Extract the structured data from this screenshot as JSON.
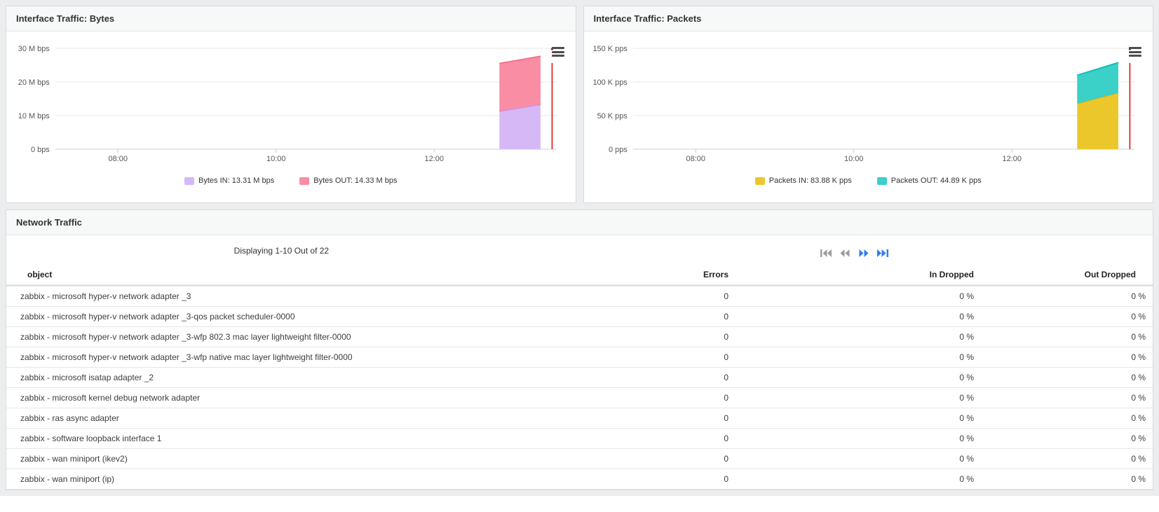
{
  "chart_data": [
    {
      "type": "area",
      "title": "Interface Traffic: Bytes",
      "stacked": true,
      "unit": "M bps",
      "ylim": [
        0,
        30
      ],
      "grid": true,
      "legend_position": "bottom",
      "y_ticks": [
        {
          "label": "30 M bps",
          "value": 30
        },
        {
          "label": "20 M bps",
          "value": 20
        },
        {
          "label": "10 M bps",
          "value": 10
        },
        {
          "label": "0 bps",
          "value": 0
        }
      ],
      "x_ticks": [
        {
          "label": "08:00",
          "pos": 0.125
        },
        {
          "label": "10:00",
          "pos": 0.44
        },
        {
          "label": "12:00",
          "pos": 0.755
        }
      ],
      "segment": {
        "x_start_frac": 0.885,
        "x_end_frac": 0.967,
        "note": "only latest ~30 min of data drawn"
      },
      "series": [
        {
          "name": "Bytes IN",
          "current": "13.31 M bps",
          "legend_label": "Bytes IN: 13.31 M bps",
          "values": [
            11.3,
            13.31
          ],
          "fill": "#d6b8f6",
          "stroke": "#bb90ef"
        },
        {
          "name": "Bytes OUT",
          "current": "14.33 M bps",
          "legend_label": "Bytes OUT: 14.33 M bps",
          "values": [
            14.2,
            14.33
          ],
          "fill": "#f98da4",
          "stroke": "#f7708f"
        }
      ],
      "time_marker": {
        "pos_frac": 0.99,
        "color": "#e60000"
      }
    },
    {
      "type": "area",
      "title": "Interface Traffic: Packets",
      "stacked": true,
      "unit": "K pps",
      "ylim": [
        0,
        150
      ],
      "grid": true,
      "legend_position": "bottom",
      "y_ticks": [
        {
          "label": "150 K pps",
          "value": 150
        },
        {
          "label": "100 K pps",
          "value": 100
        },
        {
          "label": "50 K pps",
          "value": 50
        },
        {
          "label": "0 pps",
          "value": 0
        }
      ],
      "x_ticks": [
        {
          "label": "08:00",
          "pos": 0.125
        },
        {
          "label": "10:00",
          "pos": 0.44
        },
        {
          "label": "12:00",
          "pos": 0.755
        }
      ],
      "segment": {
        "x_start_frac": 0.885,
        "x_end_frac": 0.967,
        "note": "only latest ~30 min of data drawn"
      },
      "series": [
        {
          "name": "Packets IN",
          "current": "83.88 K pps",
          "legend_label": "Packets IN: 83.88 K pps",
          "values": [
            68,
            83.88
          ],
          "fill": "#ecc72c",
          "stroke": "#d9b314"
        },
        {
          "name": "Packets OUT",
          "current": "44.89 K pps",
          "legend_label": "Packets OUT: 44.89 K pps",
          "values": [
            42,
            44.89
          ],
          "fill": "#3bd0c8",
          "stroke": "#17bdb9"
        }
      ],
      "time_marker": {
        "pos_frac": 0.99,
        "color": "#e60000"
      }
    }
  ],
  "table": {
    "panel_title": "Network Traffic",
    "summary": "Displaying 1-10 Out of 22",
    "pagination": {
      "enabled_color": "#2e7df0",
      "disabled_color": "#9c9c9c",
      "buttons": [
        {
          "name": "first-page",
          "enabled": false
        },
        {
          "name": "prev-page",
          "enabled": false
        },
        {
          "name": "next-page",
          "enabled": true
        },
        {
          "name": "last-page",
          "enabled": true
        }
      ]
    },
    "columns": [
      "object",
      "Errors",
      "In Dropped",
      "Out Dropped"
    ],
    "rows": [
      {
        "object": "zabbix - microsoft hyper-v network adapter _3",
        "errors": "0",
        "in_dropped": "0 %",
        "out_dropped": "0 %"
      },
      {
        "object": "zabbix - microsoft hyper-v network adapter _3-qos packet scheduler-0000",
        "errors": "0",
        "in_dropped": "0 %",
        "out_dropped": "0 %"
      },
      {
        "object": "zabbix - microsoft hyper-v network adapter _3-wfp 802.3 mac layer lightweight filter-0000",
        "errors": "0",
        "in_dropped": "0 %",
        "out_dropped": "0 %"
      },
      {
        "object": "zabbix - microsoft hyper-v network adapter _3-wfp native mac layer lightweight filter-0000",
        "errors": "0",
        "in_dropped": "0 %",
        "out_dropped": "0 %"
      },
      {
        "object": "zabbix - microsoft isatap adapter _2",
        "errors": "0",
        "in_dropped": "0 %",
        "out_dropped": "0 %"
      },
      {
        "object": "zabbix - microsoft kernel debug network adapter",
        "errors": "0",
        "in_dropped": "0 %",
        "out_dropped": "0 %"
      },
      {
        "object": "zabbix - ras async adapter",
        "errors": "0",
        "in_dropped": "0 %",
        "out_dropped": "0 %"
      },
      {
        "object": "zabbix - software loopback interface 1",
        "errors": "0",
        "in_dropped": "0 %",
        "out_dropped": "0 %"
      },
      {
        "object": "zabbix - wan miniport (ikev2)",
        "errors": "0",
        "in_dropped": "0 %",
        "out_dropped": "0 %"
      },
      {
        "object": "zabbix - wan miniport (ip)",
        "errors": "0",
        "in_dropped": "0 %",
        "out_dropped": "0 %"
      }
    ]
  }
}
